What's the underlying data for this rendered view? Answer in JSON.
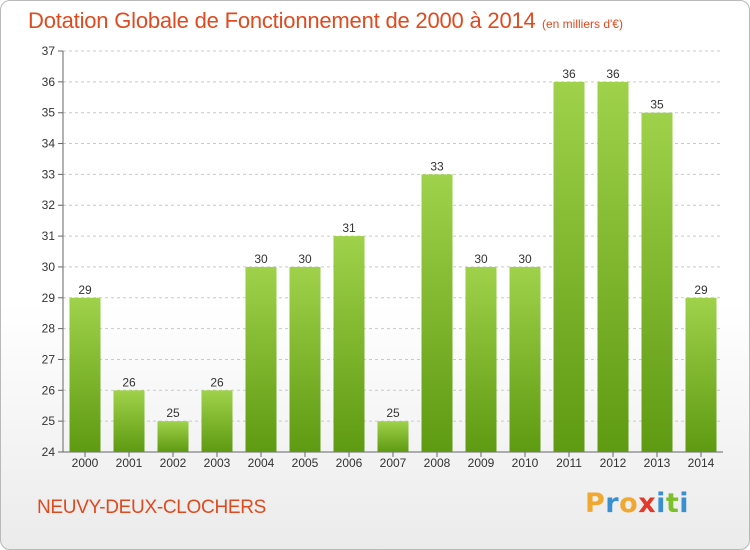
{
  "title": "Dotation Globale de Fonctionnement de 2000 à 2014",
  "subtitle": "(en milliers d'€)",
  "commune": "NEUVY-DEUX-CLOCHERS",
  "logo": {
    "letters": [
      "P",
      "r",
      "o",
      "x",
      "i",
      "t",
      "i"
    ],
    "colors": [
      "#f0a830",
      "#3a8fd0",
      "#f0a830",
      "#e23a2a",
      "#3a8fd0",
      "#7bbf2a",
      "#3a8fd0"
    ]
  },
  "colors": {
    "title": "#e04a1f",
    "bar_light": "#9fd24a",
    "bar_dark": "#5e9a12",
    "grid": "#c9c9c9"
  },
  "chart_data": {
    "type": "bar",
    "title": "Dotation Globale de Fonctionnement de 2000 à 2014",
    "subtitle": "(en milliers d'€)",
    "categories": [
      "2000",
      "2001",
      "2002",
      "2003",
      "2004",
      "2005",
      "2006",
      "2007",
      "2008",
      "2009",
      "2010",
      "2011",
      "2012",
      "2013",
      "2014"
    ],
    "values": [
      29,
      26,
      25,
      26,
      30,
      30,
      31,
      25,
      33,
      30,
      30,
      36,
      36,
      35,
      29
    ],
    "ylim": [
      24,
      37
    ],
    "yticks": [
      24,
      25,
      26,
      27,
      28,
      29,
      30,
      31,
      32,
      33,
      34,
      35,
      36,
      37
    ],
    "grid": true,
    "legend": "none"
  }
}
